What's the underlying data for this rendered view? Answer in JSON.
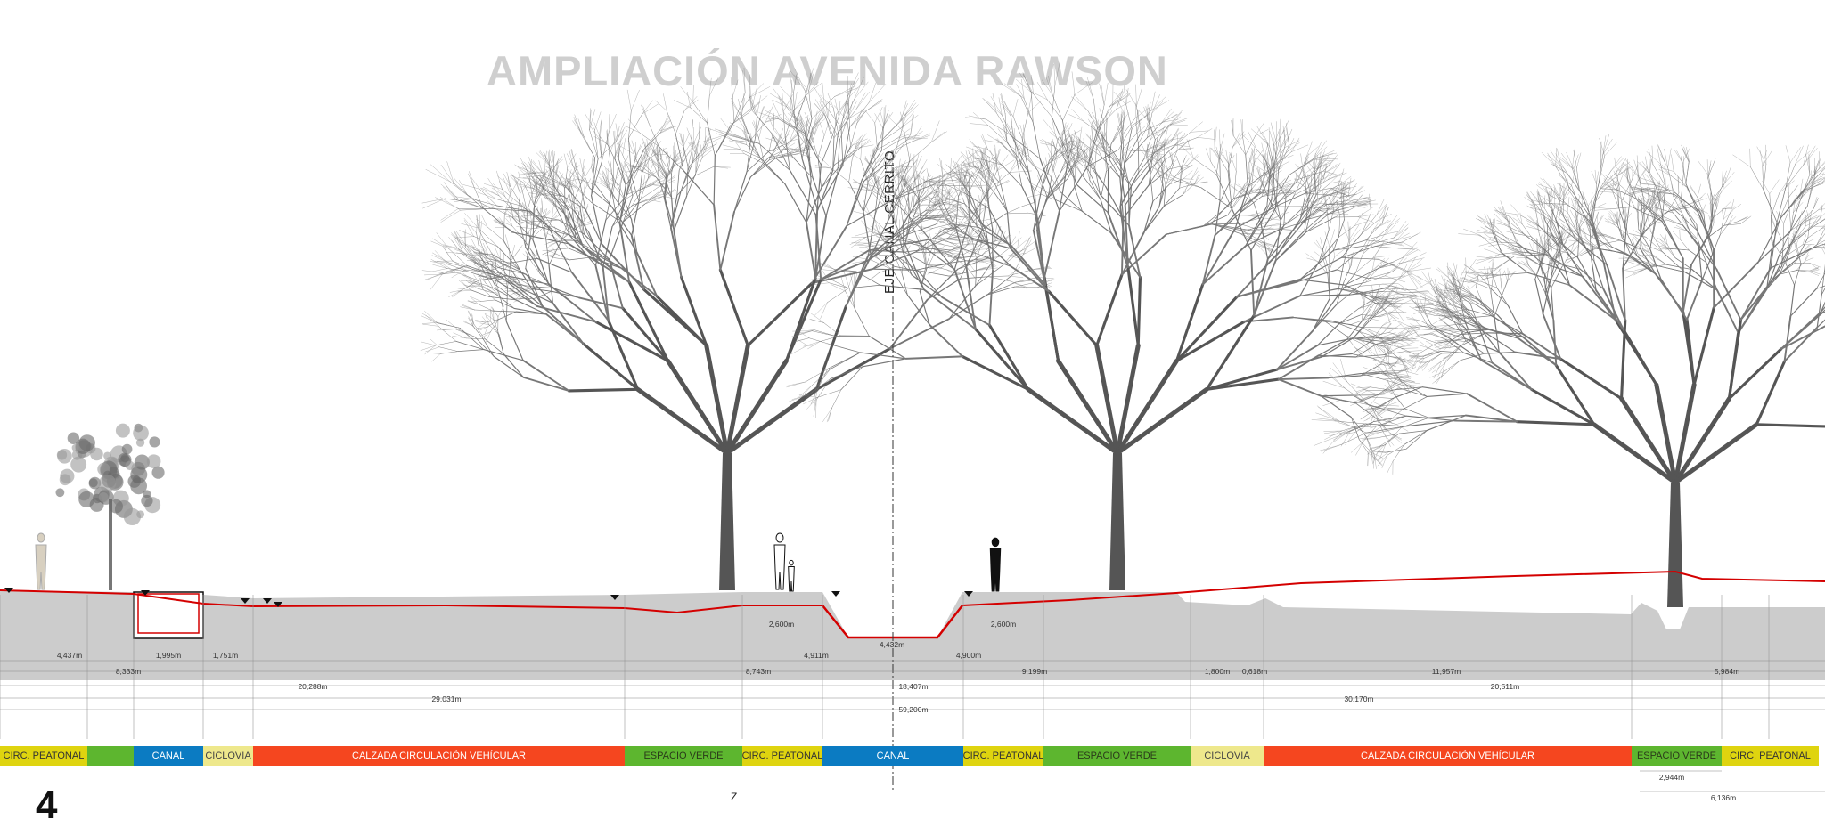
{
  "title": "AMPLIACIÓN AVENIDA RAWSON",
  "axis_label": "EJE CANAL CERRITO",
  "section_number": "4",
  "z_mark": "Z",
  "colors": {
    "circ_peatonal": "#dfd40f",
    "espacio_verde": "#5db62f",
    "canal": "#0b7bc2",
    "ciclovia": "#eee88c",
    "calzada": "#f5461f",
    "ground": "#cccccc",
    "profile_line": "#d40000",
    "title": "#cfcfcf"
  },
  "bands": [
    {
      "label": "CIRC. PEATONAL",
      "type": "circ_peatonal"
    },
    {
      "label": "",
      "type": "espacio_verde"
    },
    {
      "label": "CANAL",
      "type": "canal"
    },
    {
      "label": "CICLOVIA",
      "type": "ciclovia"
    },
    {
      "label": "CALZADA CIRCULACIÓN VEHÍCULAR",
      "type": "calzada"
    },
    {
      "label": "ESPACIO VERDE",
      "type": "espacio_verde"
    },
    {
      "label": "CIRC. PEATONAL",
      "type": "circ_peatonal"
    },
    {
      "label": "CANAL",
      "type": "canal"
    },
    {
      "label": "CIRC. PEATONAL",
      "type": "circ_peatonal"
    },
    {
      "label": "ESPACIO VERDE",
      "type": "espacio_verde"
    },
    {
      "label": "CICLOVIA",
      "type": "ciclovia"
    },
    {
      "label": "CALZADA CIRCULACIÓN VEHÍCULAR",
      "type": "calzada"
    },
    {
      "label": "ESPACIO VERDE",
      "type": "espacio_verde"
    },
    {
      "label": "CIRC. PEATONAL",
      "type": "circ_peatonal"
    }
  ],
  "dimensions": [
    "4,437m",
    "1,995m",
    "1,751m",
    "8,333m",
    "2,600m",
    "4,432m",
    "4,911m",
    "8,743m",
    "20,288m",
    "29,031m",
    "18,407m",
    "59,200m",
    "2,600m",
    "4,900m",
    "9,199m",
    "1,800m",
    "0,618m",
    "11,957m",
    "5,984m",
    "20,511m",
    "30,170m",
    "2,944m",
    "6,136m"
  ],
  "elements": {
    "trees": [
      "tree",
      "tree",
      "tree",
      "tree"
    ],
    "people": [
      "person",
      "person",
      "person"
    ]
  }
}
